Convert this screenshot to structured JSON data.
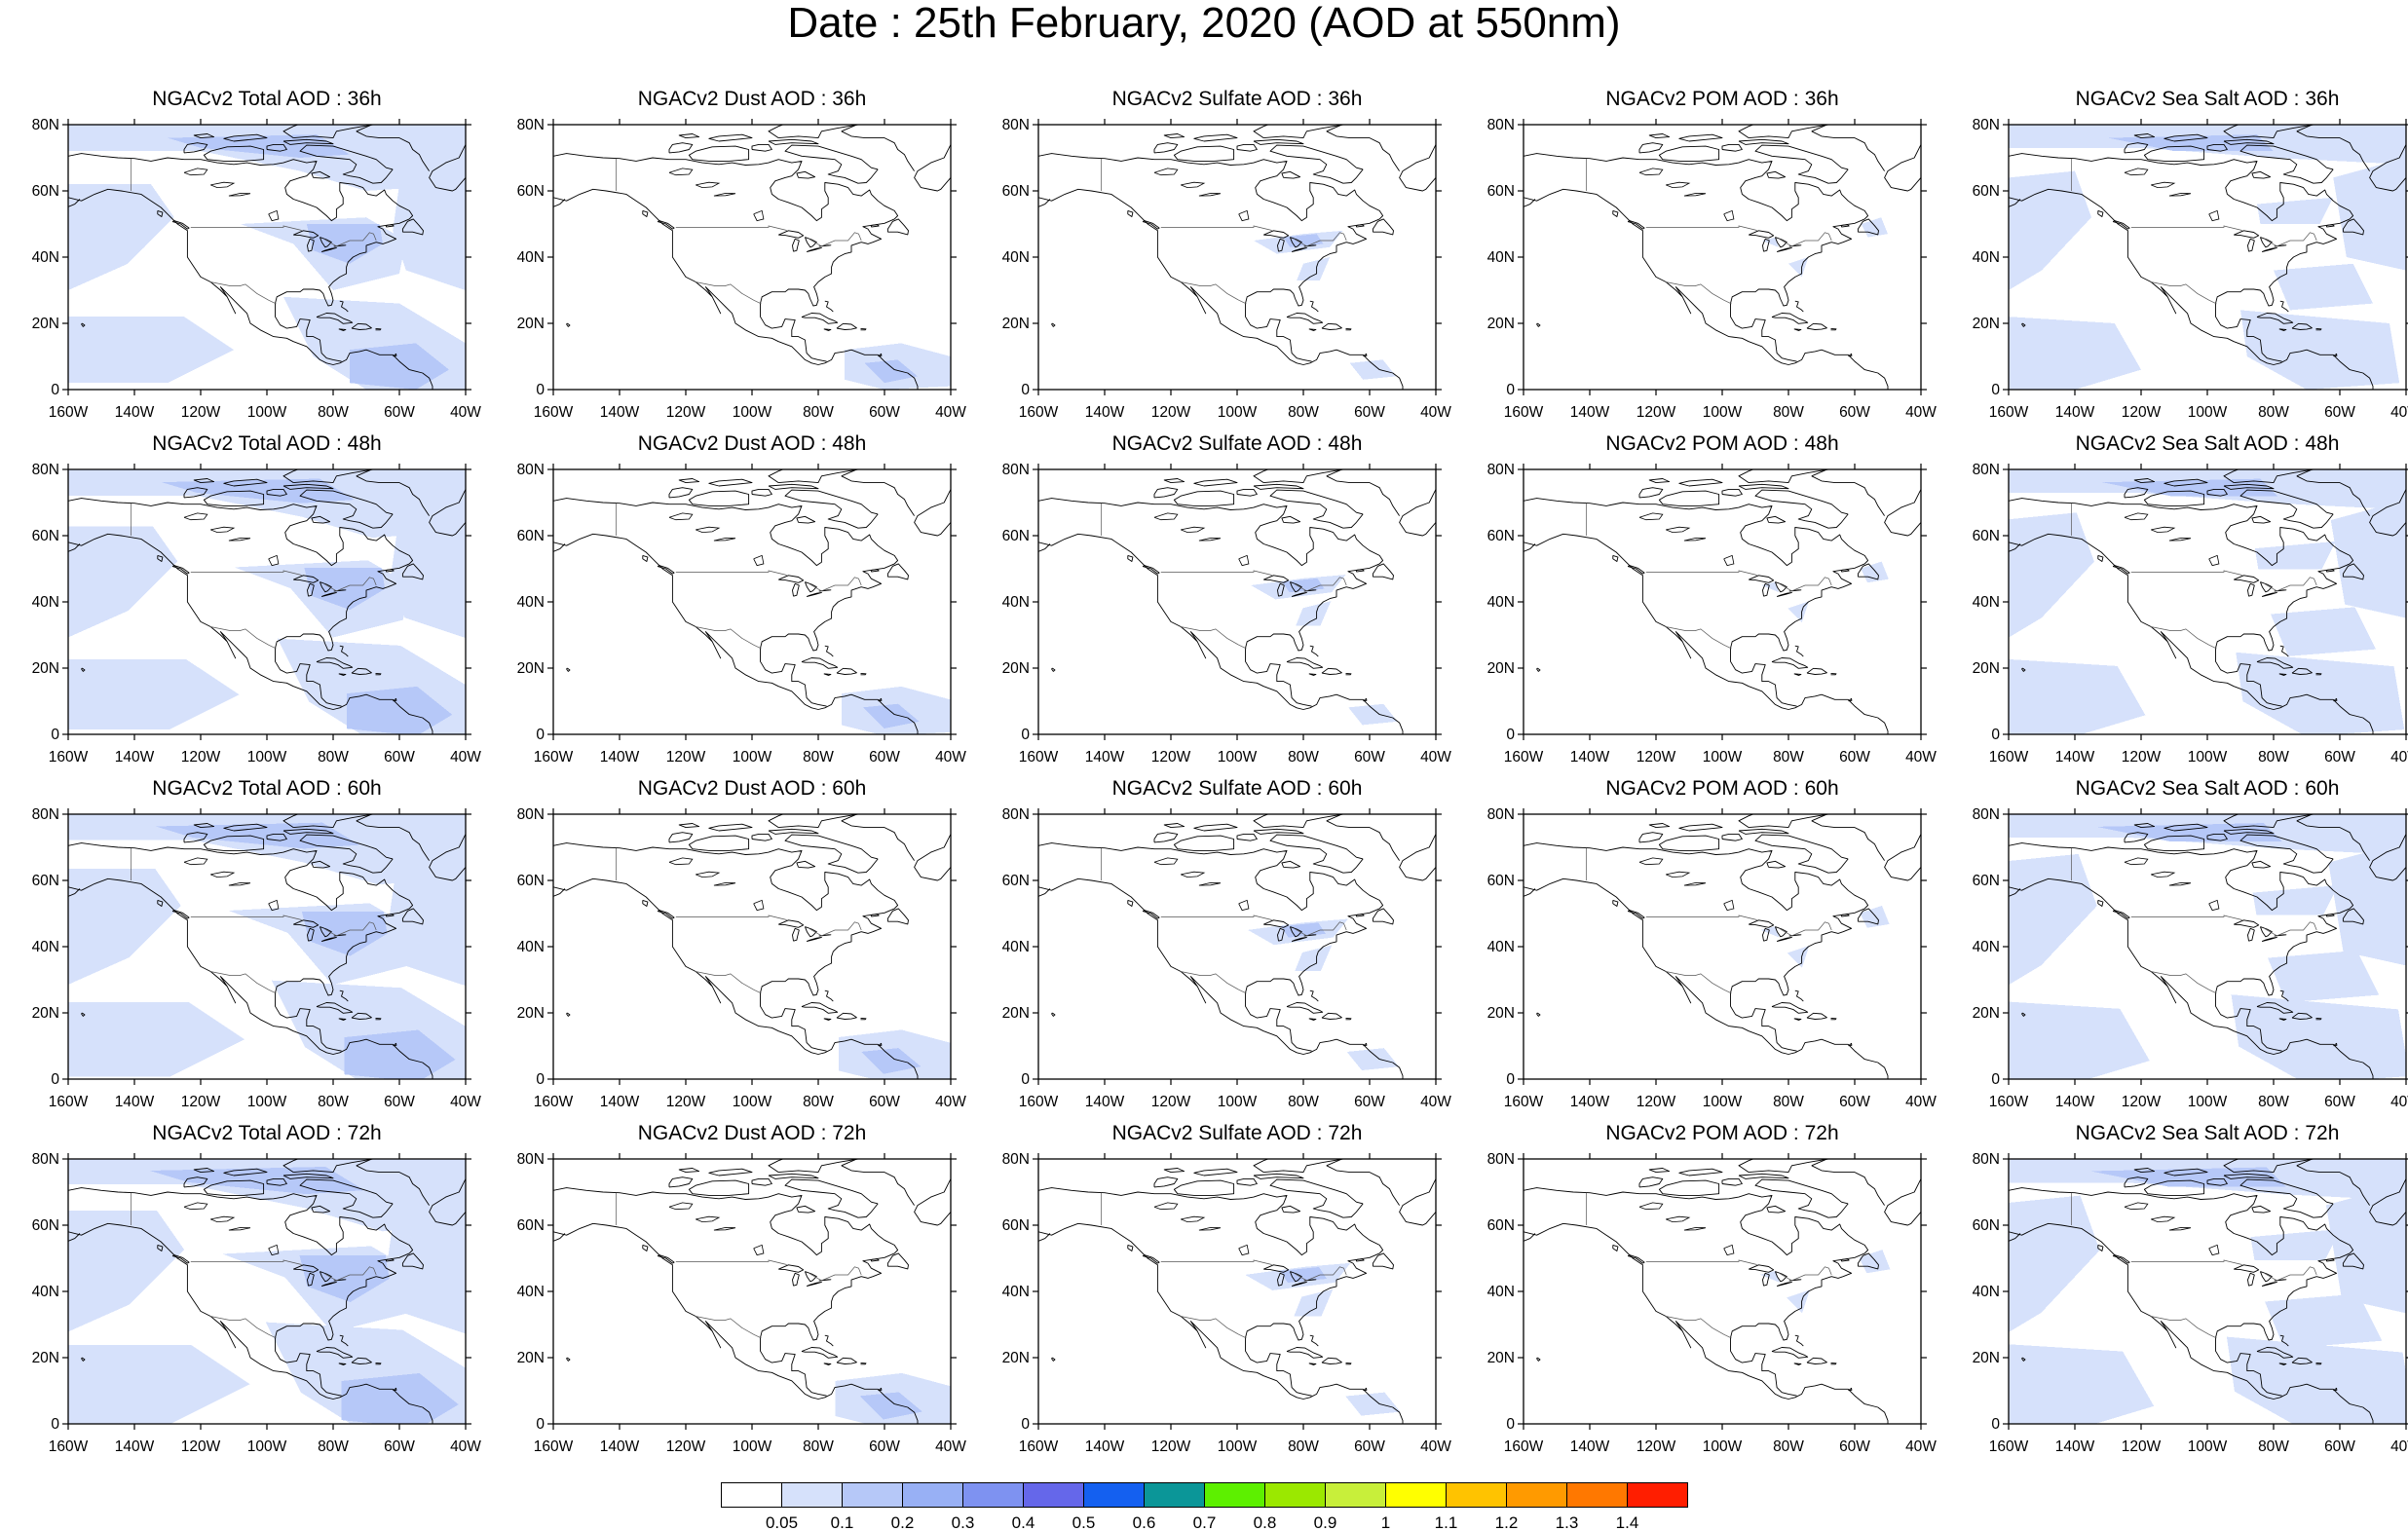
{
  "title": "Date : 25th February, 2020 (AOD at 550nm)",
  "lat_ticks": [
    "80N",
    "60N",
    "40N",
    "20N",
    "0"
  ],
  "lon_ticks": [
    "160W",
    "140W",
    "120W",
    "100W",
    "80W",
    "60W",
    "40W"
  ],
  "map_extent": {
    "lon": [
      -160,
      -40
    ],
    "lat": [
      0,
      80
    ]
  },
  "aerosols": [
    "total",
    "dust",
    "sulfate",
    "pom",
    "seasalt"
  ],
  "forecast_hours": [
    "36h",
    "48h",
    "60h",
    "72h"
  ],
  "panel_titles": [
    [
      "NGACv2 Total AOD : 36h",
      "NGACv2 Dust AOD : 36h",
      "NGACv2 Sulfate AOD : 36h",
      "NGACv2 POM AOD : 36h",
      "NGACv2 Sea Salt AOD : 36h"
    ],
    [
      "NGACv2 Total AOD : 48h",
      "NGACv2 Dust AOD : 48h",
      "NGACv2 Sulfate AOD : 48h",
      "NGACv2 POM AOD : 48h",
      "NGACv2 Sea Salt AOD : 48h"
    ],
    [
      "NGACv2 Total AOD : 60h",
      "NGACv2 Dust AOD : 60h",
      "NGACv2 Sulfate AOD : 60h",
      "NGACv2 POM AOD : 60h",
      "NGACv2 Sea Salt AOD : 60h"
    ],
    [
      "NGACv2 Total AOD : 72h",
      "NGACv2 Dust AOD : 72h",
      "NGACv2 Sulfate AOD : 72h",
      "NGACv2 POM AOD : 72h",
      "NGACv2 Sea Salt  AOD : 72h"
    ]
  ],
  "colorbar": {
    "labels": [
      "0.05",
      "0.1",
      "0.2",
      "0.3",
      "0.4",
      "0.5",
      "0.6",
      "0.7",
      "0.8",
      "0.9",
      "1",
      "1.1",
      "1.2",
      "1.3",
      "1.4"
    ],
    "colors": [
      "#ffffff",
      "#d6e1fb",
      "#b6c8f8",
      "#98b0f5",
      "#7e92f1",
      "#6567ea",
      "#1460f0",
      "#0b9698",
      "#5df000",
      "#9be800",
      "#c8ef3a",
      "#ffff00",
      "#ffc300",
      "#ff9a00",
      "#ff7800",
      "#ff1e00"
    ]
  },
  "colors": {
    "coastline": "#000000",
    "aod_level_1": "#d6e1fb",
    "aod_level_2": "#b6c8f8",
    "aod_level_3": "#98b0f5"
  }
}
